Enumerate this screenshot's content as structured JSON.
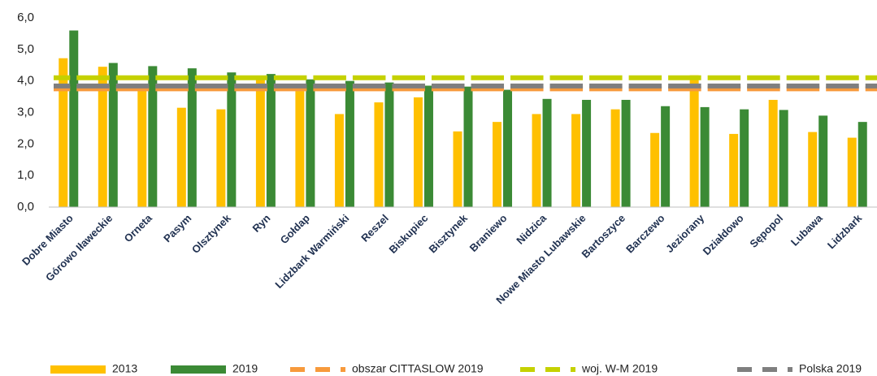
{
  "chart_data": {
    "type": "bar",
    "categories": [
      "Dobre Miasto",
      "Górowo Iławeckie",
      "Orneta",
      "Pasym",
      "Olsztynek",
      "Ryn",
      "Gołdap",
      "Lidzbark Warmiński",
      "Reszel",
      "Biskupiec",
      "Bisztynek",
      "Braniewo",
      "Nidzica",
      "Nowe Miasto Lubawskie",
      "Bartoszyce",
      "Barczewo",
      "Jeziorany",
      "Działdowo",
      "Sępopol",
      "Lubawa",
      "Lidzbark"
    ],
    "series": [
      {
        "name": "2013",
        "color": "#ffc000",
        "values": [
          4.72,
          4.45,
          3.85,
          3.15,
          3.1,
          4.08,
          3.68,
          2.95,
          3.32,
          3.48,
          2.4,
          2.7,
          2.95,
          2.95,
          3.1,
          2.35,
          4.18,
          2.32,
          3.4,
          2.38,
          2.2
        ]
      },
      {
        "name": "2019",
        "color": "#3b8a35",
        "values": [
          5.6,
          4.57,
          4.47,
          4.4,
          4.27,
          4.22,
          4.05,
          4.0,
          3.95,
          3.85,
          3.82,
          3.72,
          3.43,
          3.4,
          3.4,
          3.2,
          3.17,
          3.1,
          3.08,
          2.9,
          2.7
        ]
      }
    ],
    "reference_lines": [
      {
        "name": "obszar CITTASLOW 2019",
        "color": "#f79a3c",
        "value": 3.75
      },
      {
        "name": "woj. W-M 2019",
        "color": "#c5d100",
        "value": 4.1
      },
      {
        "name": "Polska 2019",
        "color": "#7f7f7f",
        "value": 3.84
      }
    ],
    "ylim": [
      0,
      6
    ],
    "yticks": [
      {
        "value": 0,
        "label": "0,0"
      },
      {
        "value": 1,
        "label": "1,0"
      },
      {
        "value": 2,
        "label": "2,0"
      },
      {
        "value": 3,
        "label": "3,0"
      },
      {
        "value": 4,
        "label": "4,0"
      },
      {
        "value": 5,
        "label": "5,0"
      },
      {
        "value": 6,
        "label": "6,0"
      }
    ],
    "grid": false
  }
}
